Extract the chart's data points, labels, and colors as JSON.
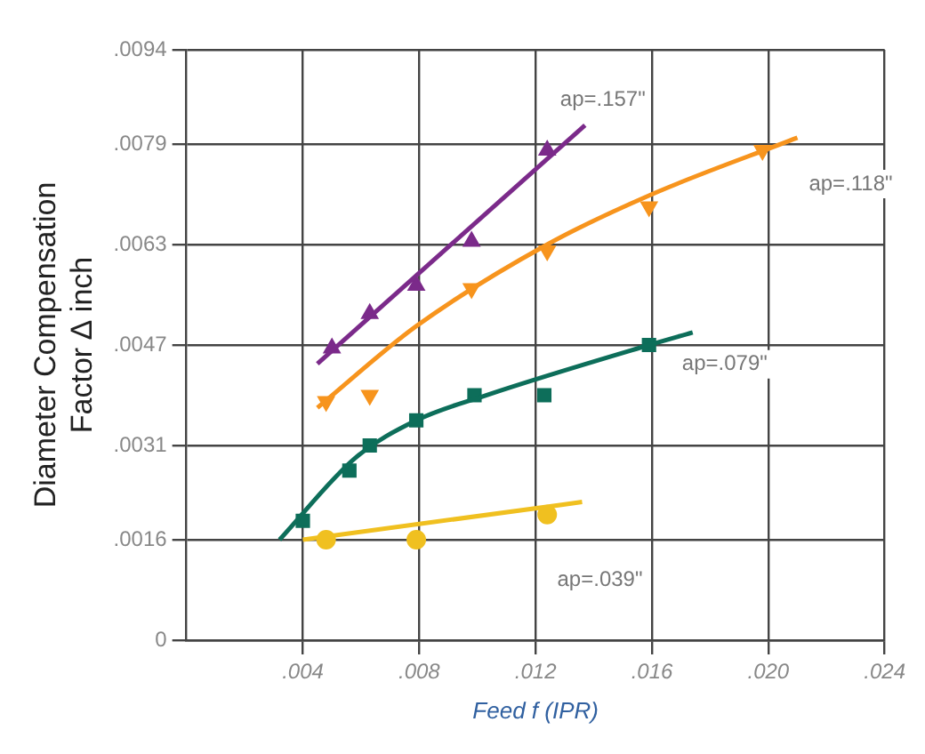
{
  "chart_data": {
    "type": "scatter",
    "xlabel": "Feed f (IPR)",
    "ylabel": "Diameter Compensation\nFactor ∆ inch",
    "xlim": [
      0,
      0.024
    ],
    "ylim": [
      0,
      0.0094
    ],
    "xticks": [
      {
        "value": 0.004,
        "label": ".004"
      },
      {
        "value": 0.008,
        "label": ".008"
      },
      {
        "value": 0.012,
        "label": ".012"
      },
      {
        "value": 0.016,
        "label": ".016"
      },
      {
        "value": 0.02,
        "label": ".020"
      },
      {
        "value": 0.024,
        "label": ".024"
      }
    ],
    "yticks": [
      0,
      {
        "value": 0.0016,
        "label": ".0016"
      },
      {
        "value": 0.0031,
        "label": ".0031"
      },
      {
        "value": 0.0047,
        "label": ".0047"
      },
      {
        "value": 0.0063,
        "label": ".0063"
      },
      {
        "value": 0.0079,
        "label": ".0079"
      },
      {
        "value": 0.0094,
        "label": ".0094"
      }
    ],
    "grid": true,
    "legend": false,
    "series": [
      {
        "type": "line",
        "marker": "none",
        "color": "#7b2a8a",
        "name": "ap=.157\"",
        "x": [
          0.0045,
          0.0137
        ],
        "values": [
          0.0044,
          0.0082
        ]
      },
      {
        "type": "scatter",
        "marker": "triangle",
        "color": "#7b2a8a",
        "x": [
          0.005,
          0.0063,
          0.0079,
          0.0098,
          0.0124
        ],
        "values": [
          0.00465,
          0.0052,
          0.00565,
          0.00635,
          0.0078
        ]
      },
      {
        "type": "line",
        "marker": "none",
        "color": "#f7941d",
        "name": "ap=.118\"",
        "x": [
          0.0045,
          0.0079,
          0.0124,
          0.016,
          0.021
        ],
        "values": [
          0.0037,
          0.005,
          0.0063,
          0.0071,
          0.008
        ]
      },
      {
        "type": "scatter",
        "marker": "triangle-down",
        "color": "#f7941d",
        "x": [
          0.0048,
          0.0063,
          0.0098,
          0.0124,
          0.0159,
          0.0198
        ],
        "values": [
          0.0038,
          0.0039,
          0.0056,
          0.0062,
          0.0069,
          0.0078
        ]
      },
      {
        "type": "line",
        "marker": "none",
        "color": "#0d6e5a",
        "name": "ap=.079\"",
        "x": [
          0.0032,
          0.0058,
          0.0079,
          0.0103,
          0.0159,
          0.0174
        ],
        "values": [
          0.0016,
          0.0029,
          0.0035,
          0.0039,
          0.0047,
          0.0049
        ]
      },
      {
        "type": "scatter",
        "marker": "square",
        "color": "#0d6e5a",
        "x": [
          0.004,
          0.0056,
          0.0063,
          0.0079,
          0.0099,
          0.0123,
          0.0159
        ],
        "values": [
          0.0019,
          0.0027,
          0.0031,
          0.0035,
          0.0039,
          0.0039,
          0.0047
        ]
      },
      {
        "type": "line",
        "marker": "none",
        "color": "#f0c020",
        "name": "ap=.039\"",
        "x": [
          0.004,
          0.0136
        ],
        "values": [
          0.0016,
          0.0022
        ]
      },
      {
        "type": "scatter",
        "marker": "circle",
        "color": "#f0c020",
        "x": [
          0.0048,
          0.0079,
          0.0124
        ],
        "values": [
          0.0016,
          0.0016,
          0.002
        ]
      }
    ]
  }
}
